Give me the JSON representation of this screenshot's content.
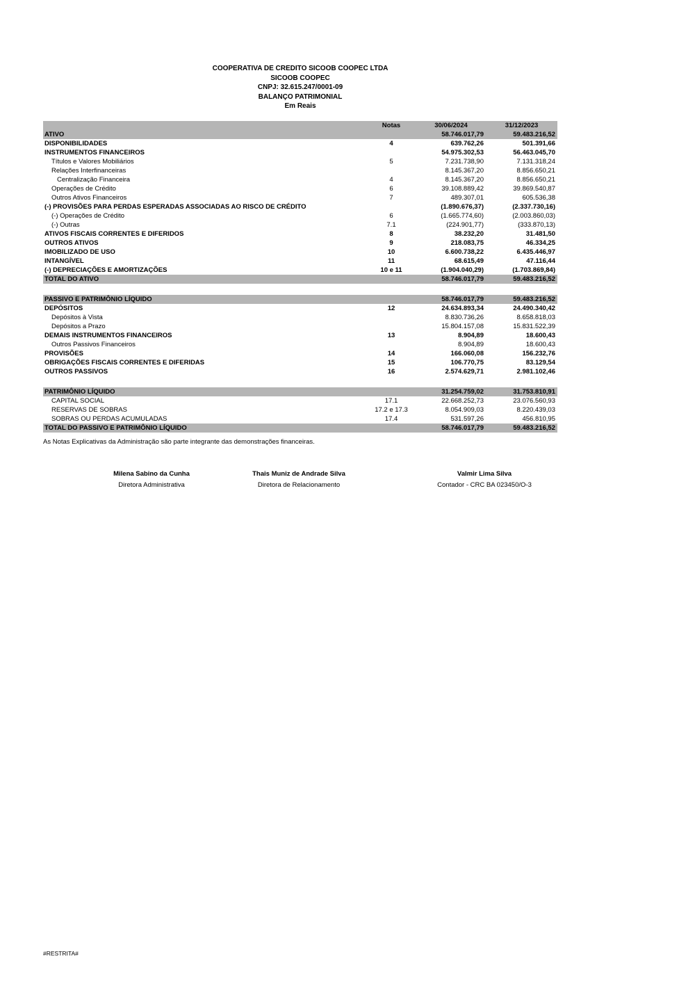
{
  "colors": {
    "header_gray": "#b5b5b5"
  },
  "doc_header": {
    "line1": "COOPERATIVA DE CREDITO SICOOB COOPEC LTDA",
    "line2": "SICOOB COOPEC",
    "line3": "CNPJ: 32.615.247/0001-09",
    "line4": "BALANÇO PATRIMONIAL",
    "line5": "Em Reais"
  },
  "table": {
    "header": {
      "notas": "Notas",
      "col2024": "30/06/2024",
      "col2023": "31/12/2023"
    },
    "rows": [
      {
        "label": "ATIVO",
        "nota": "",
        "v1": "58.746.017,79",
        "v2": "59.483.216,52",
        "gray": true,
        "bold": true,
        "indent": 0
      },
      {
        "label": "DISPONIBILIDADES",
        "nota": "4",
        "v1": "639.762,26",
        "v2": "501.391,66",
        "bold": true,
        "indent": 0
      },
      {
        "label": "INSTRUMENTOS FINANCEIROS",
        "nota": "",
        "v1": "54.975.302,53",
        "v2": "56.463.045,70",
        "bold": true,
        "indent": 0
      },
      {
        "label": "Títulos e Valores Mobiliários",
        "nota": "5",
        "v1": "7.231.738,90",
        "v2": "7.131.318,24",
        "indent": 1
      },
      {
        "label": "Relações Interfinanceiras",
        "nota": "",
        "v1": "8.145.367,20",
        "v2": "8.856.650,21",
        "indent": 1
      },
      {
        "label": "Centralização Financeira",
        "nota": "4",
        "v1": "8.145.367,20",
        "v2": "8.856.650,21",
        "indent": 2
      },
      {
        "label": "Operações de Crédito",
        "nota": "6",
        "v1": "39.108.889,42",
        "v2": "39.869.540,87",
        "indent": 1
      },
      {
        "label": "Outros Ativos Financeiros",
        "nota": "7",
        "v1": "489.307,01",
        "v2": "605.536,38",
        "indent": 1
      },
      {
        "label": "(-) PROVISÕES PARA PERDAS ESPERADAS ASSOCIADAS AO RISCO DE CRÉDITO",
        "nota": "",
        "v1": "(1.890.676,37)",
        "v2": "(2.337.730,16)",
        "bold": true,
        "indent": 0
      },
      {
        "label": "(-) Operações de Crédito",
        "nota": "6",
        "v1": "(1.665.774,60)",
        "v2": "(2.003.860,03)",
        "indent": 1
      },
      {
        "label": "(-) Outras",
        "nota": "7.1",
        "v1": "(224.901,77)",
        "v2": "(333.870,13)",
        "indent": 1
      },
      {
        "label": "ATIVOS FISCAIS CORRENTES E DIFERIDOS",
        "nota": "8",
        "v1": "38.232,20",
        "v2": "31.481,50",
        "bold": true,
        "indent": 0
      },
      {
        "label": "OUTROS ATIVOS",
        "nota": "9",
        "v1": "218.083,75",
        "v2": "46.334,25",
        "bold": true,
        "indent": 0
      },
      {
        "label": "IMOBILIZADO DE USO",
        "nota": "10",
        "v1": "6.600.738,22",
        "v2": "6.435.446,97",
        "bold": true,
        "indent": 0
      },
      {
        "label": "INTANGÍVEL",
        "nota": "11",
        "v1": "68.615,49",
        "v2": "47.116,44",
        "bold": true,
        "indent": 0
      },
      {
        "label": "(-) DEPRECIAÇÕES E AMORTIZAÇÕES",
        "nota": "10 e 11",
        "v1": "(1.904.040,29)",
        "v2": "(1.703.869,84)",
        "bold": true,
        "indent": 0
      },
      {
        "label": "TOTAL DO ATIVO",
        "nota": "",
        "v1": "58.746.017,79",
        "v2": "59.483.216,52",
        "gray": true,
        "bold": true,
        "indent": 0
      },
      {
        "spacer": true
      },
      {
        "label": "PASSIVO E PATRIMÔNIO LÍQUIDO",
        "nota": "",
        "v1": "58.746.017,79",
        "v2": "59.483.216,52",
        "gray": true,
        "bold": true,
        "indent": 0
      },
      {
        "label": "DEPÓSITOS",
        "nota": "12",
        "v1": "24.634.893,34",
        "v2": "24.490.340,42",
        "bold": true,
        "indent": 0
      },
      {
        "label": "Depósitos à Vista",
        "nota": "",
        "v1": "8.830.736,26",
        "v2": "8.658.818,03",
        "indent": 1
      },
      {
        "label": "Depósitos a Prazo",
        "nota": "",
        "v1": "15.804.157,08",
        "v2": "15.831.522,39",
        "indent": 1
      },
      {
        "label": "DEMAIS INSTRUMENTOS FINANCEIROS",
        "nota": "13",
        "v1": "8.904,89",
        "v2": "18.600,43",
        "bold": true,
        "indent": 0
      },
      {
        "label": "Outros Passivos Financeiros",
        "nota": "",
        "v1": "8.904,89",
        "v2": "18.600,43",
        "indent": 1
      },
      {
        "label": "PROVISÕES",
        "nota": "14",
        "v1": "166.060,08",
        "v2": "156.232,76",
        "bold": true,
        "indent": 0
      },
      {
        "label": "OBRIGAÇÕES FISCAIS CORRENTES E DIFERIDAS",
        "nota": "15",
        "v1": "106.770,75",
        "v2": "83.129,54",
        "bold": true,
        "indent": 0
      },
      {
        "label": "OUTROS PASSIVOS",
        "nota": "16",
        "v1": "2.574.629,71",
        "v2": "2.981.102,46",
        "bold": true,
        "indent": 0
      },
      {
        "spacer": true
      },
      {
        "label": "PATRIMÔNIO LÍQUIDO",
        "nota": "",
        "v1": "31.254.759,02",
        "v2": "31.753.810,91",
        "gray": true,
        "bold": true,
        "indent": 0
      },
      {
        "label": "CAPITAL SOCIAL",
        "nota": "17.1",
        "v1": "22.668.252,73",
        "v2": "23.076.560,93",
        "indent": 1
      },
      {
        "label": "RESERVAS DE SOBRAS",
        "nota": "17.2 e 17.3",
        "v1": "8.054.909,03",
        "v2": "8.220.439,03",
        "indent": 1
      },
      {
        "label": "SOBRAS OU PERDAS ACUMULADAS",
        "nota": "17.4",
        "v1": "531.597,26",
        "v2": "456.810,95",
        "indent": 1
      },
      {
        "label": "TOTAL DO PASSIVO E PATRIMÔNIO LÍQUIDO",
        "nota": "",
        "v1": "58.746.017,79",
        "v2": "59.483.216,52",
        "gray": true,
        "bold": true,
        "indent": 0
      }
    ]
  },
  "footer_note": "As Notas Explicativas da Administração são parte integrante das demonstrações financeiras.",
  "signatures": [
    {
      "name": "Milena Sabino da Cunha",
      "title": "Diretora Administrativa"
    },
    {
      "name": "Thais Muniz de Andrade Silva",
      "title": "Diretora de Relacionamento"
    },
    {
      "name": "Valmir Lima Silva",
      "title": "Contador - CRC BA 023450/O-3"
    }
  ],
  "restricted_tag": "#RESTRITA#"
}
